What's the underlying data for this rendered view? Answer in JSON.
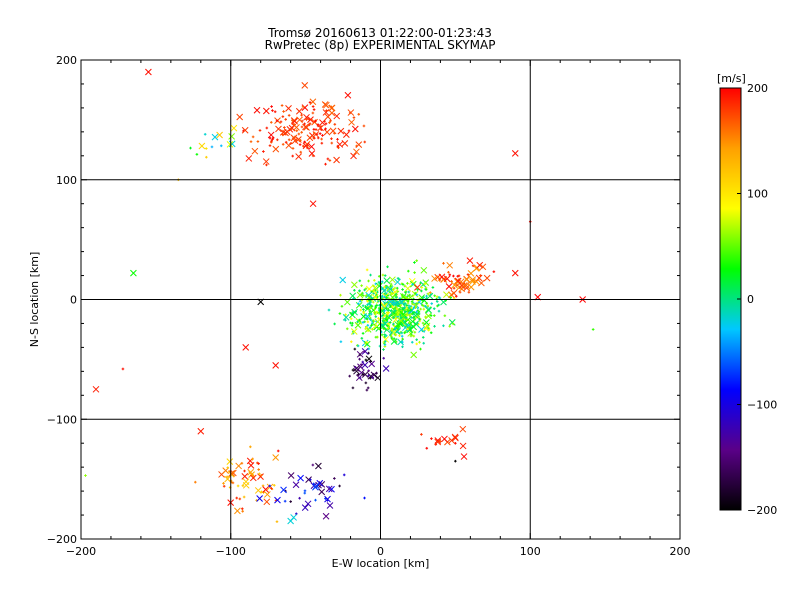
{
  "title_lines": [
    "Tromsø 20160613 01:22:00-01:23:43",
    "RwPretec (8p) EXPERIMENTAL SKYMAP"
  ],
  "chart_data": {
    "type": "scatter",
    "title": "Tromsø 20160613 01:22:00-01:23:43",
    "subtitle": "RwPretec (8p) EXPERIMENTAL SKYMAP",
    "xlabel": "E-W location [km]",
    "ylabel": "N-S location [km]",
    "xlim": [
      -200,
      200
    ],
    "ylim": [
      -200,
      200
    ],
    "xticks": [
      -200,
      -100,
      0,
      100,
      200
    ],
    "yticks": [
      -200,
      -100,
      0,
      100,
      200
    ],
    "grid": true,
    "grid_values": {
      "x": [
        -100,
        0,
        100
      ],
      "y": [
        -100,
        0,
        100
      ]
    },
    "colorbar": {
      "label": "[m/s]",
      "range": [
        -200,
        200
      ],
      "ticks": [
        200,
        100,
        0,
        -100,
        -200
      ],
      "colormap": [
        "#000000",
        "#5a0088",
        "#0000ff",
        "#00c8ff",
        "#00ff00",
        "#ffff00",
        "#ffa000",
        "#ff0000"
      ]
    },
    "marker_legend": {
      "small_dot": "plus",
      "cross": "x"
    },
    "clusters": [
      {
        "name": "north",
        "center": [
          -50,
          142
        ],
        "spread": [
          30,
          20
        ],
        "count": 170,
        "velocity": [
          165,
          200
        ],
        "cross_fraction": 0.35
      },
      {
        "name": "north-outer",
        "center": [
          -110,
          130
        ],
        "spread": [
          15,
          15
        ],
        "count": 14,
        "velocity": [
          -50,
          120
        ],
        "cross_fraction": 0.4
      },
      {
        "name": "center",
        "center": [
          8,
          -10
        ],
        "spread": [
          25,
          22
        ],
        "count": 650,
        "velocity": [
          -30,
          90
        ],
        "cross_fraction": 0.18
      },
      {
        "name": "center-east",
        "center": [
          52,
          18
        ],
        "spread": [
          18,
          12
        ],
        "count": 60,
        "velocity": [
          140,
          200
        ],
        "cross_fraction": 0.5
      },
      {
        "name": "center-south",
        "center": [
          -10,
          -58
        ],
        "spread": [
          8,
          14
        ],
        "count": 40,
        "velocity": [
          -200,
          -120
        ],
        "cross_fraction": 0.45
      },
      {
        "name": "south-west",
        "center": [
          -90,
          -150
        ],
        "spread": [
          20,
          25
        ],
        "count": 60,
        "velocity": [
          110,
          200
        ],
        "cross_fraction": 0.4
      },
      {
        "name": "south-middle",
        "center": [
          -45,
          -160
        ],
        "spread": [
          20,
          20
        ],
        "count": 40,
        "velocity": [
          -180,
          -60
        ],
        "cross_fraction": 0.5
      },
      {
        "name": "south-east",
        "center": [
          45,
          -120
        ],
        "spread": [
          14,
          10
        ],
        "count": 16,
        "velocity": [
          170,
          200
        ],
        "cross_fraction": 0.6
      }
    ],
    "points": [
      {
        "x": -155,
        "y": 190,
        "v": 195,
        "marker": "x"
      },
      {
        "x": -190,
        "y": -75,
        "v": 190,
        "marker": "x"
      },
      {
        "x": -165,
        "y": 22,
        "v": 30,
        "marker": "x"
      },
      {
        "x": 90,
        "y": 122,
        "v": 195,
        "marker": "x"
      },
      {
        "x": 135,
        "y": 0,
        "v": 200,
        "marker": "x"
      },
      {
        "x": 105,
        "y": 2,
        "v": 200,
        "marker": "x"
      },
      {
        "x": 90,
        "y": 22,
        "v": 195,
        "marker": "x"
      },
      {
        "x": 100,
        "y": 65,
        "v": 195,
        "marker": "plus"
      },
      {
        "x": 142,
        "y": -25,
        "v": 40,
        "marker": "plus"
      },
      {
        "x": -90,
        "y": -40,
        "v": 195,
        "marker": "x"
      },
      {
        "x": -70,
        "y": -55,
        "v": 195,
        "marker": "x"
      },
      {
        "x": -45,
        "y": 120,
        "v": 180,
        "marker": "plus"
      },
      {
        "x": -45,
        "y": 80,
        "v": 195,
        "marker": "x"
      },
      {
        "x": -80,
        "y": -2,
        "v": -200,
        "marker": "x"
      },
      {
        "x": -135,
        "y": 100,
        "v": 120,
        "marker": "plus"
      },
      {
        "x": -120,
        "y": -110,
        "v": 190,
        "marker": "x"
      },
      {
        "x": -60,
        "y": -185,
        "v": -20,
        "marker": "x"
      },
      {
        "x": -58,
        "y": -182,
        "v": -20,
        "marker": "x"
      },
      {
        "x": -197,
        "y": -147,
        "v": 60,
        "marker": "plus"
      },
      {
        "x": -172,
        "y": -58,
        "v": 195,
        "marker": "plus"
      },
      {
        "x": 50,
        "y": -135,
        "v": -200,
        "marker": "plus"
      }
    ]
  }
}
